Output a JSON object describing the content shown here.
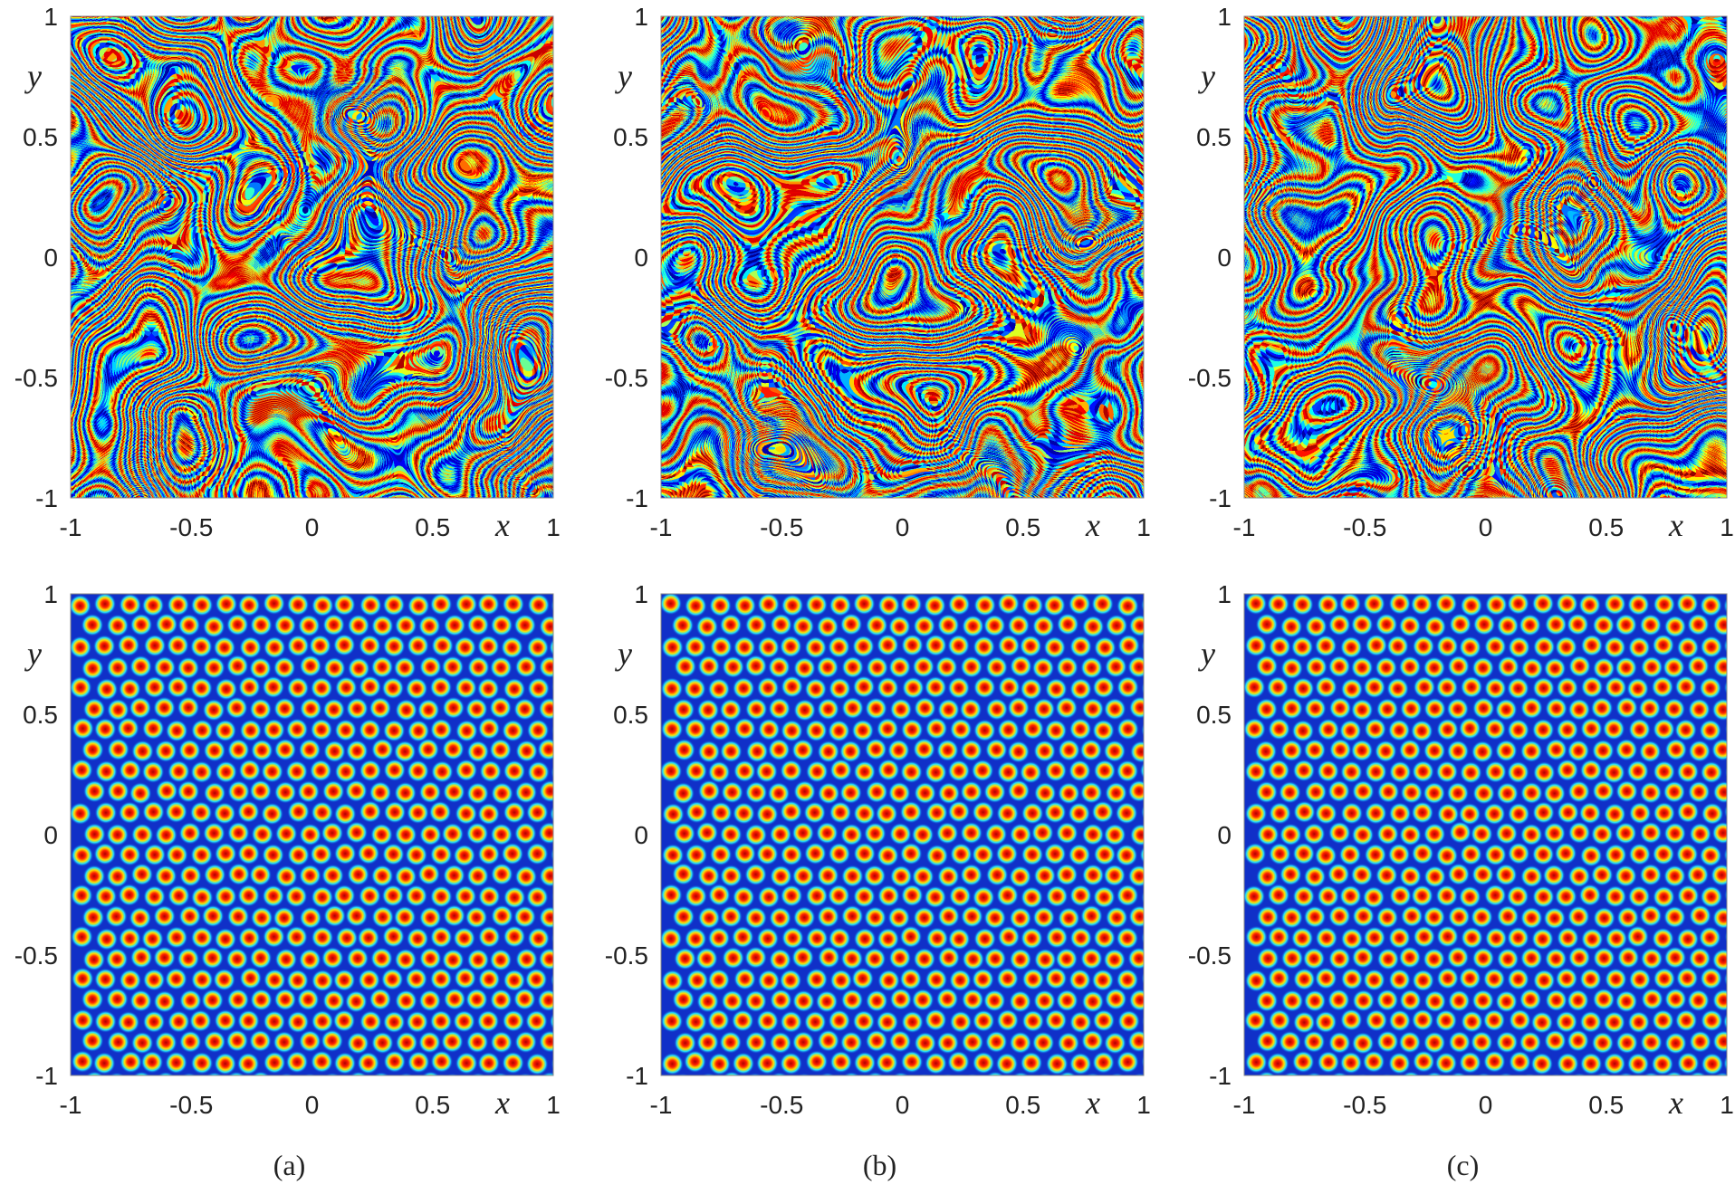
{
  "chart_data": [
    {
      "type": "stripes",
      "xlim": [
        -1,
        1
      ],
      "ylim": [
        -1,
        1
      ],
      "xticks": [
        -1,
        -0.5,
        0,
        0.5,
        1
      ],
      "yticks": [
        -1,
        -0.5,
        0,
        0.5,
        1
      ],
      "xlabel": "x",
      "ylabel": "y"
    },
    {
      "type": "stripes",
      "xlim": [
        -1,
        1
      ],
      "ylim": [
        -1,
        1
      ],
      "xticks": [
        -1,
        -0.5,
        0,
        0.5,
        1
      ],
      "yticks": [
        -1,
        -0.5,
        0,
        0.5,
        1
      ],
      "xlabel": "x",
      "ylabel": "y"
    },
    {
      "type": "stripes",
      "xlim": [
        -1,
        1
      ],
      "ylim": [
        -1,
        1
      ],
      "xticks": [
        -1,
        -0.5,
        0,
        0.5,
        1
      ],
      "yticks": [
        -1,
        -0.5,
        0,
        0.5,
        1
      ],
      "xlabel": "x",
      "ylabel": "y"
    },
    {
      "type": "spots",
      "xlim": [
        -1,
        1
      ],
      "ylim": [
        -1,
        1
      ],
      "xticks": [
        -1,
        -0.5,
        0,
        0.5,
        1
      ],
      "yticks": [
        -1,
        -0.5,
        0,
        0.5,
        1
      ],
      "xlabel": "x",
      "ylabel": "y",
      "caption": "(a)"
    },
    {
      "type": "spots",
      "xlim": [
        -1,
        1
      ],
      "ylim": [
        -1,
        1
      ],
      "xticks": [
        -1,
        -0.5,
        0,
        0.5,
        1
      ],
      "yticks": [
        -1,
        -0.5,
        0,
        0.5,
        1
      ],
      "xlabel": "x",
      "ylabel": "y",
      "caption": "(b)"
    },
    {
      "type": "spots",
      "xlim": [
        -1,
        1
      ],
      "ylim": [
        -1,
        1
      ],
      "xticks": [
        -1,
        -0.5,
        0,
        0.5,
        1
      ],
      "yticks": [
        -1,
        -0.5,
        0,
        0.5,
        1
      ],
      "xlabel": "x",
      "ylabel": "y",
      "caption": "(c)"
    }
  ]
}
